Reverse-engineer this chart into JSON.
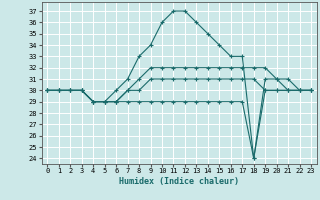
{
  "xlabel": "Humidex (Indice chaleur)",
  "bg_color": "#cce8e8",
  "grid_color": "#ffffff",
  "line_color": "#1a6b6b",
  "xlim": [
    -0.5,
    23.5
  ],
  "ylim": [
    23.5,
    37.8
  ],
  "yticks": [
    24,
    25,
    26,
    27,
    28,
    29,
    30,
    31,
    32,
    33,
    34,
    35,
    36,
    37
  ],
  "xticks": [
    0,
    1,
    2,
    3,
    4,
    5,
    6,
    7,
    8,
    9,
    10,
    11,
    12,
    13,
    14,
    15,
    16,
    17,
    18,
    19,
    20,
    21,
    22,
    23
  ],
  "series": [
    [
      30,
      30,
      30,
      30,
      29,
      29,
      29,
      30,
      30,
      31,
      31,
      31,
      31,
      31,
      31,
      31,
      31,
      31,
      31,
      30,
      30,
      30,
      30,
      30
    ],
    [
      30,
      30,
      30,
      30,
      29,
      29,
      30,
      31,
      33,
      34,
      36,
      37,
      37,
      36,
      35,
      34,
      33,
      33,
      24,
      31,
      31,
      30,
      30,
      30
    ],
    [
      30,
      30,
      30,
      30,
      29,
      29,
      29,
      29,
      29,
      29,
      29,
      29,
      29,
      29,
      29,
      29,
      29,
      29,
      24,
      30,
      30,
      30,
      30,
      30
    ],
    [
      30,
      30,
      30,
      30,
      29,
      29,
      29,
      30,
      31,
      32,
      32,
      32,
      32,
      32,
      32,
      32,
      32,
      32,
      32,
      32,
      31,
      31,
      30,
      30
    ]
  ]
}
